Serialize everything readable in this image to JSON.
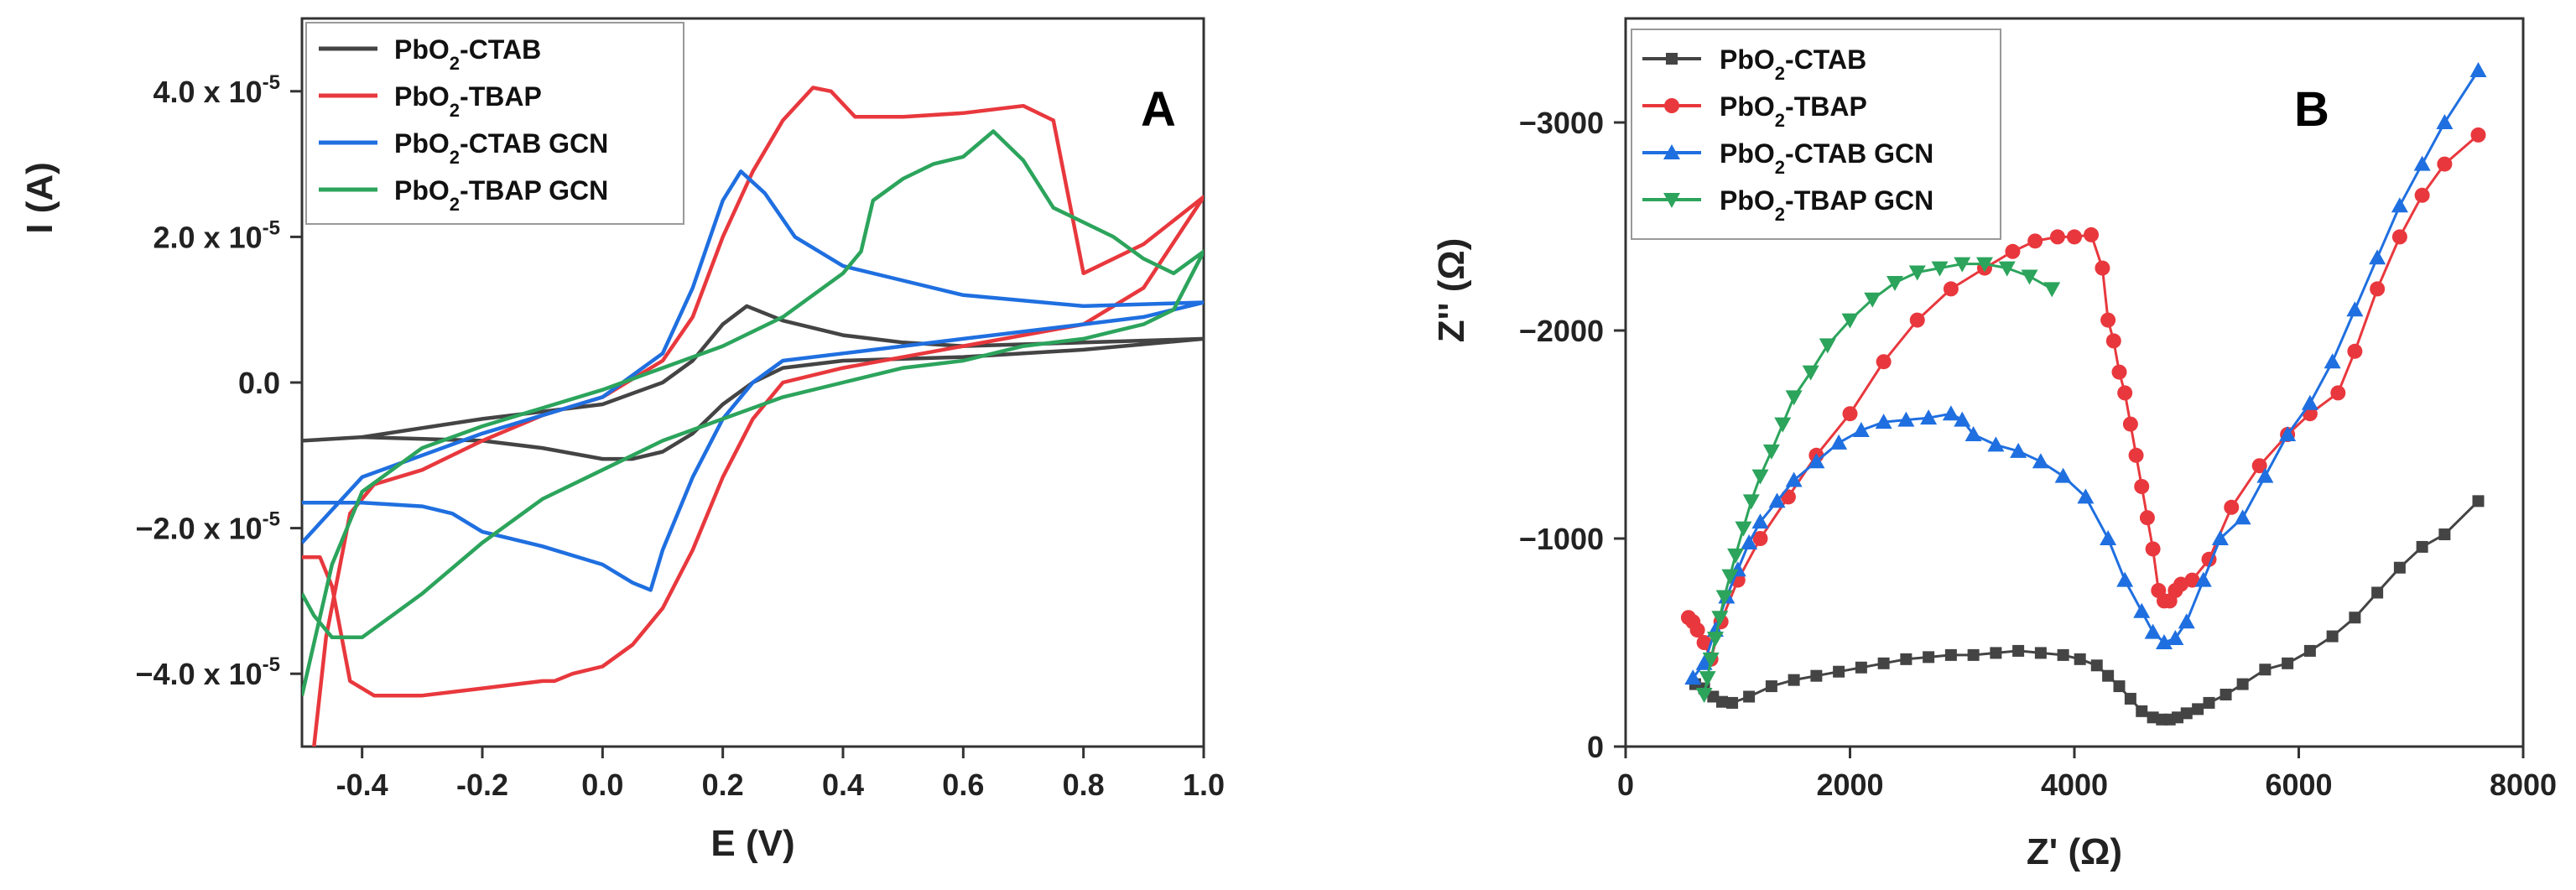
{
  "chart_data": [
    {
      "type": "line",
      "panel_label": "A",
      "xlabel": "E (V)",
      "ylabel": "I (A)",
      "xlim": [
        -0.5,
        1.0
      ],
      "ylim": [
        -5e-05,
        5e-05
      ],
      "x_ticks": [
        {
          "value": -0.4,
          "label": "-0.4"
        },
        {
          "value": -0.2,
          "label": "-0.2"
        },
        {
          "value": 0.0,
          "label": "0.0"
        },
        {
          "value": 0.2,
          "label": "0.2"
        },
        {
          "value": 0.4,
          "label": "0.4"
        },
        {
          "value": 0.6,
          "label": "0.6"
        },
        {
          "value": 0.8,
          "label": "0.8"
        },
        {
          "value": 1.0,
          "label": "1.0"
        }
      ],
      "y_ticks": [
        {
          "value": 4e-05,
          "mantissa": "4.0 x 10",
          "exp": "-5"
        },
        {
          "value": 2e-05,
          "mantissa": "2.0 x 10",
          "exp": "-5"
        },
        {
          "value": 0.0,
          "mantissa": "0.0",
          "exp": ""
        },
        {
          "value": -2e-05,
          "mantissa": "−2.0 x 10",
          "exp": "-5"
        },
        {
          "value": -4e-05,
          "mantissa": "−4.0 x 10",
          "exp": "-5"
        }
      ],
      "legend_position": "top-left",
      "series": [
        {
          "name_base": "PbO",
          "name_sub": "2",
          "name_rest": "-CTAB",
          "color": "#444444",
          "x": [
            -0.5,
            -0.4,
            -0.2,
            0.0,
            0.1,
            0.15,
            0.2,
            0.24,
            0.3,
            0.4,
            0.5,
            0.6,
            0.8,
            1.0,
            0.8,
            0.6,
            0.4,
            0.3,
            0.25,
            0.2,
            0.15,
            0.1,
            0.05,
            0.0,
            -0.1,
            -0.2,
            -0.4,
            -0.5
          ],
          "y": [
            -8e-06,
            -7.5e-06,
            -5e-06,
            -3e-06,
            0.0,
            3e-06,
            8e-06,
            1.05e-05,
            8.5e-06,
            6.5e-06,
            5.5e-06,
            5e-06,
            5.5e-06,
            6e-06,
            4.5e-06,
            3.5e-06,
            3e-06,
            2e-06,
            0.0,
            -3e-06,
            -7e-06,
            -9.5e-06,
            -1.05e-05,
            -1.05e-05,
            -9e-06,
            -8e-06,
            -7.5e-06,
            -8e-06
          ]
        },
        {
          "name_base": "PbO",
          "name_sub": "2",
          "name_rest": "-TBAP",
          "color": "#e8383d",
          "x": [
            -0.48,
            -0.46,
            -0.42,
            -0.38,
            -0.3,
            -0.2,
            -0.1,
            0.0,
            0.1,
            0.15,
            0.2,
            0.25,
            0.3,
            0.35,
            0.38,
            0.42,
            0.5,
            0.6,
            0.7,
            0.75,
            0.8,
            0.9,
            1.0,
            0.9,
            0.8,
            0.6,
            0.4,
            0.3,
            0.25,
            0.2,
            0.15,
            0.1,
            0.05,
            0.0,
            -0.05,
            -0.08,
            -0.1,
            -0.2,
            -0.3,
            -0.38,
            -0.42,
            -0.45,
            -0.47,
            -0.49,
            -0.5
          ],
          "y": [
            -5e-05,
            -3.5e-05,
            -1.8e-05,
            -1.4e-05,
            -1.2e-05,
            -8e-06,
            -4.5e-06,
            -2e-06,
            3e-06,
            9e-06,
            2e-05,
            2.9e-05,
            3.6e-05,
            4.05e-05,
            4e-05,
            3.65e-05,
            3.65e-05,
            3.7e-05,
            3.8e-05,
            3.6e-05,
            1.5e-05,
            1.9e-05,
            2.55e-05,
            1.3e-05,
            8e-06,
            5e-06,
            2e-06,
            0.0,
            -5e-06,
            -1.3e-05,
            -2.3e-05,
            -3.1e-05,
            -3.6e-05,
            -3.9e-05,
            -4e-05,
            -4.1e-05,
            -4.1e-05,
            -4.2e-05,
            -4.3e-05,
            -4.3e-05,
            -4.1e-05,
            -2.8e-05,
            -2.4e-05,
            -2.4e-05,
            -2.4e-05
          ]
        },
        {
          "name_base": "PbO",
          "name_sub": "2",
          "name_rest": "-CTAB GCN",
          "color": "#1f6fe0",
          "x": [
            -0.5,
            -0.4,
            -0.2,
            0.0,
            0.1,
            0.15,
            0.2,
            0.23,
            0.27,
            0.32,
            0.4,
            0.5,
            0.6,
            0.8,
            1.0,
            0.9,
            0.8,
            0.6,
            0.4,
            0.3,
            0.25,
            0.2,
            0.15,
            0.1,
            0.08,
            0.05,
            0.0,
            -0.1,
            -0.2,
            -0.25,
            -0.3,
            -0.4,
            -0.5
          ],
          "y": [
            -2.2e-05,
            -1.3e-05,
            -7e-06,
            -2e-06,
            4e-06,
            1.3e-05,
            2.5e-05,
            2.9e-05,
            2.6e-05,
            2e-05,
            1.6e-05,
            1.4e-05,
            1.2e-05,
            1.05e-05,
            1.1e-05,
            9e-06,
            8e-06,
            6e-06,
            4e-06,
            3e-06,
            0.0,
            -5e-06,
            -1.3e-05,
            -2.3e-05,
            -2.85e-05,
            -2.75e-05,
            -2.5e-05,
            -2.25e-05,
            -2.05e-05,
            -1.8e-05,
            -1.7e-05,
            -1.65e-05,
            -1.65e-05
          ]
        },
        {
          "name_base": "PbO",
          "name_sub": "2",
          "name_rest": "-TBAP GCN",
          "color": "#2ca45c",
          "x": [
            -0.5,
            -0.45,
            -0.4,
            -0.3,
            -0.2,
            -0.1,
            0.0,
            0.1,
            0.2,
            0.3,
            0.35,
            0.4,
            0.43,
            0.45,
            0.5,
            0.55,
            0.6,
            0.65,
            0.7,
            0.75,
            0.8,
            0.85,
            0.9,
            0.95,
            1.0,
            0.95,
            0.9,
            0.85,
            0.8,
            0.7,
            0.6,
            0.5,
            0.4,
            0.3,
            0.2,
            0.1,
            0.0,
            -0.1,
            -0.2,
            -0.3,
            -0.35,
            -0.4,
            -0.45,
            -0.48,
            -0.5
          ],
          "y": [
            -4.3e-05,
            -2.5e-05,
            -1.5e-05,
            -9e-06,
            -6e-06,
            -3.5e-06,
            -1e-06,
            2e-06,
            5e-06,
            9e-06,
            1.2e-05,
            1.5e-05,
            1.8e-05,
            2.5e-05,
            2.8e-05,
            3e-05,
            3.1e-05,
            3.45e-05,
            3.05e-05,
            2.4e-05,
            2.2e-05,
            2e-05,
            1.7e-05,
            1.5e-05,
            1.8e-05,
            1e-05,
            8e-06,
            7e-06,
            6e-06,
            5e-06,
            3e-06,
            2e-06,
            0.0,
            -2e-06,
            -5e-06,
            -8e-06,
            -1.2e-05,
            -1.6e-05,
            -2.2e-05,
            -2.9e-05,
            -3.2e-05,
            -3.5e-05,
            -3.5e-05,
            -3.2e-05,
            -2.9e-05
          ]
        }
      ]
    },
    {
      "type": "scatter",
      "panel_label": "B",
      "xlabel": "Z' (Ω)",
      "ylabel": "Z'' (Ω)",
      "xlim": [
        0,
        8000
      ],
      "ylim": [
        0,
        -3500
      ],
      "x_ticks": [
        {
          "value": 0,
          "label": "0"
        },
        {
          "value": 2000,
          "label": "2000"
        },
        {
          "value": 4000,
          "label": "4000"
        },
        {
          "value": 6000,
          "label": "6000"
        },
        {
          "value": 8000,
          "label": "8000"
        }
      ],
      "y_ticks": [
        {
          "value": -3000,
          "label": "−3000"
        },
        {
          "value": -2000,
          "label": "−2000"
        },
        {
          "value": -1000,
          "label": "−1000"
        },
        {
          "value": 0,
          "label": "0"
        }
      ],
      "legend_position": "top-left",
      "series": [
        {
          "name_base": "PbO",
          "name_sub": "2",
          "name_rest": "-CTAB",
          "color": "#444444",
          "marker": "square",
          "x": [
            620,
            700,
            780,
            860,
            950,
            1100,
            1300,
            1500,
            1700,
            1900,
            2100,
            2300,
            2500,
            2700,
            2900,
            3100,
            3300,
            3500,
            3700,
            3900,
            4050,
            4200,
            4300,
            4400,
            4500,
            4600,
            4700,
            4780,
            4850,
            4920,
            5000,
            5100,
            5200,
            5350,
            5500,
            5700,
            5900,
            6100,
            6300,
            6500,
            6700,
            6900,
            7100,
            7300,
            7600
          ],
          "y": [
            -300,
            -280,
            -240,
            -215,
            -210,
            -240,
            -290,
            -320,
            -340,
            -360,
            -380,
            -400,
            -420,
            -430,
            -440,
            -440,
            -450,
            -460,
            -450,
            -440,
            -420,
            -390,
            -340,
            -290,
            -230,
            -170,
            -140,
            -130,
            -130,
            -140,
            -160,
            -180,
            -210,
            -250,
            -300,
            -370,
            -400,
            -460,
            -530,
            -620,
            -740,
            -860,
            -960,
            -1020,
            -1180
          ]
        },
        {
          "name_base": "PbO",
          "name_sub": "2",
          "name_rest": "-TBAP",
          "color": "#e8383d",
          "marker": "circle",
          "x": [
            560,
            600,
            640,
            700,
            760,
            850,
            1000,
            1200,
            1450,
            1700,
            2000,
            2300,
            2600,
            2900,
            3200,
            3450,
            3650,
            3850,
            4000,
            4150,
            4250,
            4300,
            4350,
            4400,
            4450,
            4500,
            4550,
            4600,
            4650,
            4700,
            4750,
            4800,
            4850,
            4900,
            4950,
            5050,
            5200,
            5400,
            5650,
            5900,
            6100,
            6350,
            6500,
            6700,
            6900,
            7100,
            7300,
            7600
          ],
          "y": [
            -620,
            -600,
            -560,
            -500,
            -420,
            -600,
            -800,
            -1000,
            -1200,
            -1400,
            -1600,
            -1850,
            -2050,
            -2200,
            -2300,
            -2380,
            -2430,
            -2450,
            -2450,
            -2460,
            -2300,
            -2050,
            -1950,
            -1800,
            -1700,
            -1550,
            -1400,
            -1250,
            -1100,
            -950,
            -750,
            -700,
            -700,
            -750,
            -780,
            -800,
            -900,
            -1150,
            -1350,
            -1500,
            -1600,
            -1700,
            -1900,
            -2200,
            -2450,
            -2650,
            -2800,
            -2940
          ]
        },
        {
          "name_base": "PbO",
          "name_sub": "2",
          "name_rest": "-CTAB GCN",
          "color": "#1f6fe0",
          "marker": "triangle-up",
          "x": [
            600,
            700,
            800,
            900,
            1000,
            1100,
            1200,
            1350,
            1500,
            1700,
            1900,
            2100,
            2300,
            2500,
            2700,
            2900,
            3000,
            3100,
            3300,
            3500,
            3700,
            3900,
            4100,
            4300,
            4450,
            4600,
            4700,
            4800,
            4900,
            5000,
            5150,
            5300,
            5500,
            5700,
            5900,
            6100,
            6300,
            6500,
            6700,
            6900,
            7100,
            7300,
            7600
          ],
          "y": [
            -330,
            -400,
            -560,
            -720,
            -850,
            -980,
            -1080,
            -1180,
            -1280,
            -1370,
            -1460,
            -1520,
            -1560,
            -1570,
            -1580,
            -1600,
            -1570,
            -1500,
            -1450,
            -1420,
            -1370,
            -1300,
            -1200,
            -1000,
            -800,
            -650,
            -550,
            -500,
            -520,
            -600,
            -800,
            -1000,
            -1100,
            -1300,
            -1500,
            -1650,
            -1850,
            -2100,
            -2350,
            -2600,
            -2800,
            -3000,
            -3250
          ]
        },
        {
          "name_base": "PbO",
          "name_sub": "2",
          "name_rest": "-TBAP GCN",
          "color": "#2ca45c",
          "marker": "triangle-down",
          "x": [
            700,
            730,
            760,
            800,
            840,
            880,
            930,
            980,
            1050,
            1120,
            1200,
            1300,
            1400,
            1500,
            1650,
            1800,
            2000,
            2200,
            2400,
            2600,
            2800,
            3000,
            3200,
            3400,
            3600,
            3800
          ],
          "y": [
            -250,
            -330,
            -420,
            -520,
            -620,
            -720,
            -820,
            -920,
            -1050,
            -1180,
            -1300,
            -1420,
            -1550,
            -1680,
            -1800,
            -1930,
            -2050,
            -2150,
            -2230,
            -2280,
            -2300,
            -2320,
            -2320,
            -2300,
            -2260,
            -2200
          ]
        }
      ]
    }
  ]
}
